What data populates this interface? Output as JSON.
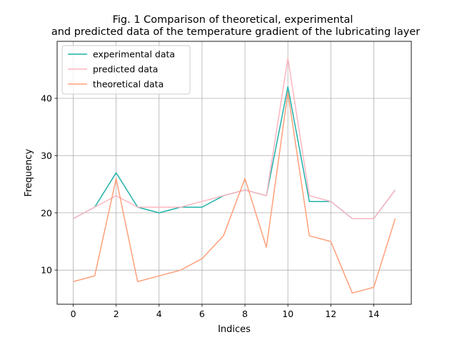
{
  "chart_data": {
    "type": "line",
    "title": "Fig. 1 Comparison of theoretical, experimental\nand predicted data of the temperature gradient of the lubricating layer",
    "title_lines": [
      "Fig. 1 Comparison of theoretical, experimental",
      "and predicted data of the temperature gradient of the lubricating layer"
    ],
    "xlabel": "Indices",
    "ylabel": "Frequency",
    "xlim": [
      -0.75,
      15.75
    ],
    "ylim": [
      4.05,
      49.95
    ],
    "xticks": [
      0,
      2,
      4,
      6,
      8,
      10,
      12,
      14
    ],
    "yticks": [
      10,
      20,
      30,
      40
    ],
    "grid": true,
    "legend_position": "top-left",
    "x": [
      0,
      1,
      2,
      3,
      4,
      5,
      6,
      7,
      8,
      9,
      10,
      11,
      12,
      13,
      14,
      15
    ],
    "series": [
      {
        "name": "experimental data",
        "color": "#20b2aa",
        "values": [
          19,
          21,
          27,
          21,
          20,
          21,
          21,
          23,
          24,
          23,
          42,
          22,
          22,
          19,
          19,
          24
        ]
      },
      {
        "name": "predicted data",
        "color": "#ffb6c1",
        "values": [
          19,
          21,
          23,
          21,
          21,
          21,
          22,
          23,
          24,
          23,
          47,
          23,
          22,
          19,
          19,
          24
        ]
      },
      {
        "name": "theoretical data",
        "color": "#ffa07a",
        "values": [
          8,
          9,
          26,
          8,
          9,
          10,
          12,
          16,
          26,
          14,
          41,
          16,
          15,
          6,
          7,
          19
        ]
      }
    ]
  }
}
